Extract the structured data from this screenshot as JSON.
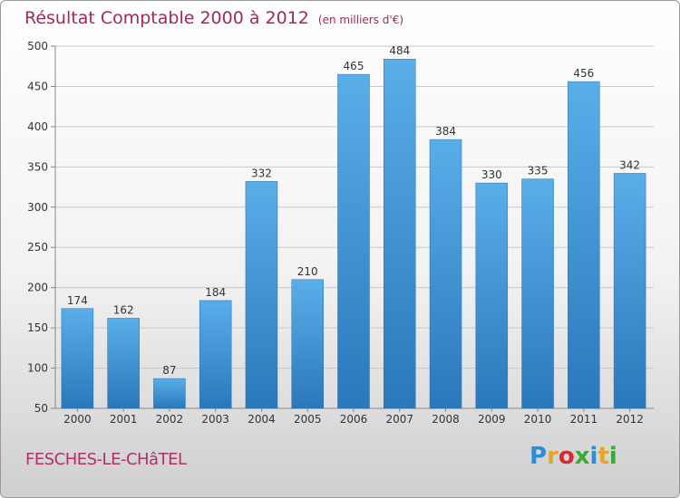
{
  "chart_data": {
    "type": "bar",
    "title": "Résultat Comptable 2000 à 2012",
    "subtitle": "(en milliers d'€)",
    "categories": [
      "2000",
      "2001",
      "2002",
      "2003",
      "2004",
      "2005",
      "2006",
      "2007",
      "2008",
      "2009",
      "2010",
      "2011",
      "2012"
    ],
    "values": [
      174,
      162,
      87,
      184,
      332,
      210,
      465,
      484,
      384,
      330,
      335,
      456,
      342
    ],
    "ylim": [
      50,
      500
    ],
    "yticks": [
      50,
      100,
      150,
      200,
      250,
      300,
      350,
      400,
      450,
      500
    ],
    "xlabel": "",
    "ylabel": "",
    "grid": true
  },
  "footer": {
    "commune": "FESCHES-LE-CHâTEL",
    "logo_letters": [
      "P",
      "r",
      "o",
      "x",
      "i",
      "t",
      "i"
    ],
    "logo_colors": [
      "#2a8fd6",
      "#e8a52a",
      "#d9282f",
      "#3aaa35",
      "#2a8fd6",
      "#e8a52a",
      "#3aaa35"
    ]
  },
  "colors": {
    "title": "#a0285a",
    "bar_top": "#5aaee8",
    "bar_bottom": "#2a78bb"
  }
}
